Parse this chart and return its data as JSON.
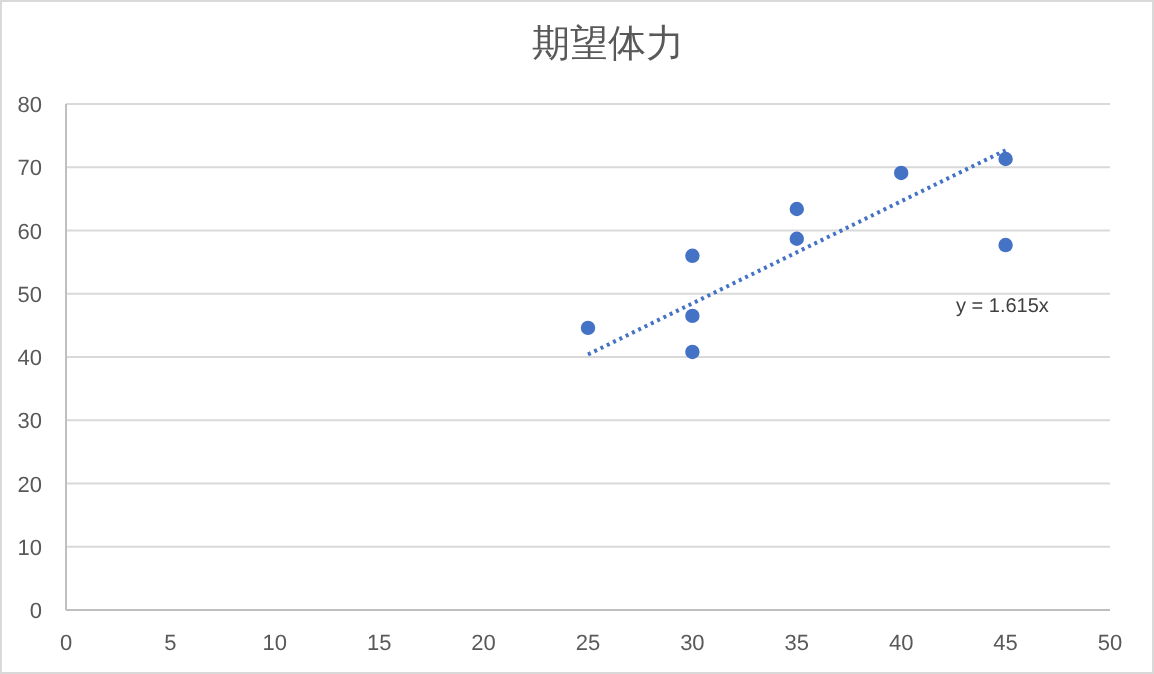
{
  "chart_data": {
    "type": "scatter",
    "title": "期望体力",
    "series": [
      {
        "color": "#4472c4",
        "marker": "circle",
        "x": [
          25,
          30,
          30,
          30,
          35,
          35,
          40,
          45,
          45
        ],
        "values": [
          44.6,
          56.0,
          46.5,
          40.8,
          63.4,
          58.7,
          69.1,
          71.3,
          57.7
        ]
      },
      {
        "type": "line",
        "color": "#4472c4",
        "marker": "none",
        "line_style": "dotted",
        "x": [
          25,
          45
        ],
        "values": [
          40.4,
          72.7
        ]
      }
    ],
    "xlim": [
      0,
      50
    ],
    "xticks": [
      0,
      5,
      10,
      15,
      20,
      25,
      30,
      35,
      40,
      45,
      50
    ],
    "ylim": [
      0,
      80
    ],
    "yticks": [
      0,
      10,
      20,
      30,
      40,
      50,
      60,
      70,
      80
    ],
    "grid": "y",
    "annotations": [
      "y = 1.615x"
    ]
  }
}
